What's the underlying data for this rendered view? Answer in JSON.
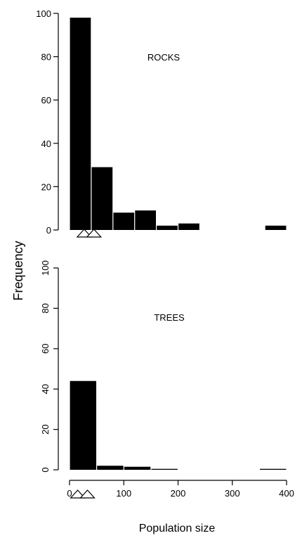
{
  "chart_data": [
    {
      "type": "bar",
      "panel": "top",
      "annotation": "ROCKS",
      "bins": [
        [
          0,
          40
        ],
        [
          40,
          80
        ],
        [
          80,
          120
        ],
        [
          120,
          160
        ],
        [
          160,
          200
        ],
        [
          200,
          240
        ],
        [
          240,
          280
        ],
        [
          280,
          320
        ],
        [
          320,
          360
        ],
        [
          360,
          400
        ]
      ],
      "values": [
        98,
        29,
        8,
        9,
        2,
        3,
        0,
        0,
        0,
        2
      ],
      "ylim": [
        0,
        100
      ],
      "yticks": [
        "0",
        "20",
        "40",
        "60",
        "80",
        "100"
      ],
      "ytick_values": [
        0,
        20,
        40,
        60,
        80,
        100
      ],
      "ytick_orientation": "horizontal",
      "markers": [
        {
          "shape": "triangle",
          "x": 27
        },
        {
          "shape": "triangle",
          "x": 45
        }
      ]
    },
    {
      "type": "bar",
      "panel": "bottom",
      "annotation": "TREES",
      "bins": [
        [
          0,
          50
        ],
        [
          50,
          100
        ],
        [
          100,
          150
        ],
        [
          150,
          200
        ],
        [
          200,
          250
        ],
        [
          250,
          300
        ],
        [
          300,
          350
        ],
        [
          350,
          400
        ]
      ],
      "values": [
        44,
        2,
        1.5,
        0.4,
        0,
        0,
        0,
        0.4
      ],
      "ylim": [
        0,
        100
      ],
      "yticks": [
        "0",
        "20",
        "40",
        "60",
        "80",
        "100"
      ],
      "ytick_values": [
        0,
        20,
        40,
        60,
        80,
        100
      ],
      "ytick_orientation": "rotated",
      "xlim": [
        0,
        400
      ],
      "xticks": [
        "0",
        "100",
        "200",
        "300",
        "400"
      ],
      "xtick_values": [
        0,
        100,
        200,
        300,
        400
      ],
      "xlabel": "Population size",
      "markers": [
        {
          "shape": "triangle",
          "x": 15
        },
        {
          "shape": "triangle",
          "x": 33
        }
      ]
    }
  ],
  "ylabel": "Frequency",
  "colors": {
    "bars": "#000000",
    "markers_stroke": "#000000",
    "markers_fill": "#ffffff"
  }
}
